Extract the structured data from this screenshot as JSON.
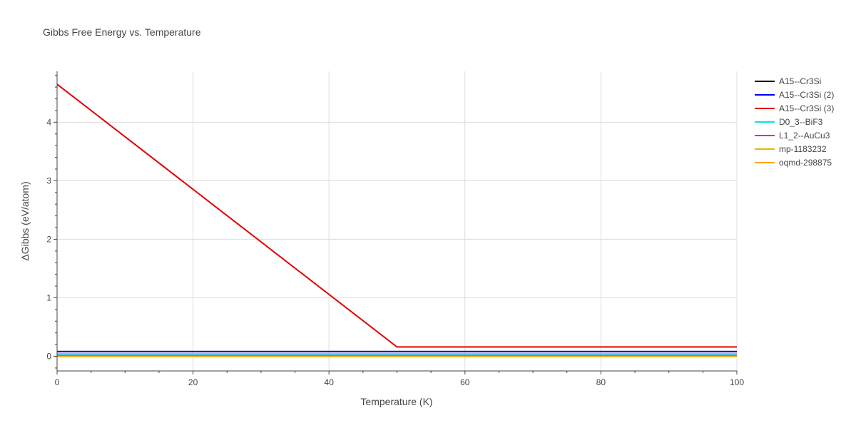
{
  "chart_data": {
    "type": "line",
    "title": "Gibbs Free Energy vs. Temperature",
    "xlabel": "Temperature (K)",
    "ylabel": "ΔGibbs (eV/atom)",
    "xlim": [
      0,
      100
    ],
    "ylim": [
      -0.25,
      4.87
    ],
    "xticks": [
      0,
      20,
      40,
      60,
      80,
      100
    ],
    "yticks": [
      0,
      1,
      2,
      3,
      4
    ],
    "grid": true,
    "legend_position": "right",
    "series": [
      {
        "name": "A15--Cr3Si",
        "color": "#000000",
        "x": [
          0,
          100
        ],
        "y": [
          0.08,
          0.08
        ]
      },
      {
        "name": "A15--Cr3Si (2)",
        "color": "#0000ff",
        "x": [
          0,
          100
        ],
        "y": [
          0.08,
          0.08
        ]
      },
      {
        "name": "A15--Cr3Si (3)",
        "color": "#e00000",
        "x": [
          0,
          50,
          100
        ],
        "y": [
          4.65,
          0.16,
          0.16
        ]
      },
      {
        "name": "D0_3--BiF3",
        "color": "#00e5e5",
        "x": [
          0,
          100
        ],
        "y": [
          0.04,
          0.04
        ]
      },
      {
        "name": "L1_2--AuCu3",
        "color": "#e000e0",
        "x": [
          0,
          100
        ],
        "y": [
          0.01,
          0.01
        ]
      },
      {
        "name": "mp-1183232",
        "color": "#e6b800",
        "x": [
          0,
          100
        ],
        "y": [
          0.0,
          0.0
        ]
      },
      {
        "name": "oqmd-298875",
        "color": "#ffa500",
        "x": [
          0,
          100
        ],
        "y": [
          0.0,
          0.0
        ]
      }
    ]
  }
}
